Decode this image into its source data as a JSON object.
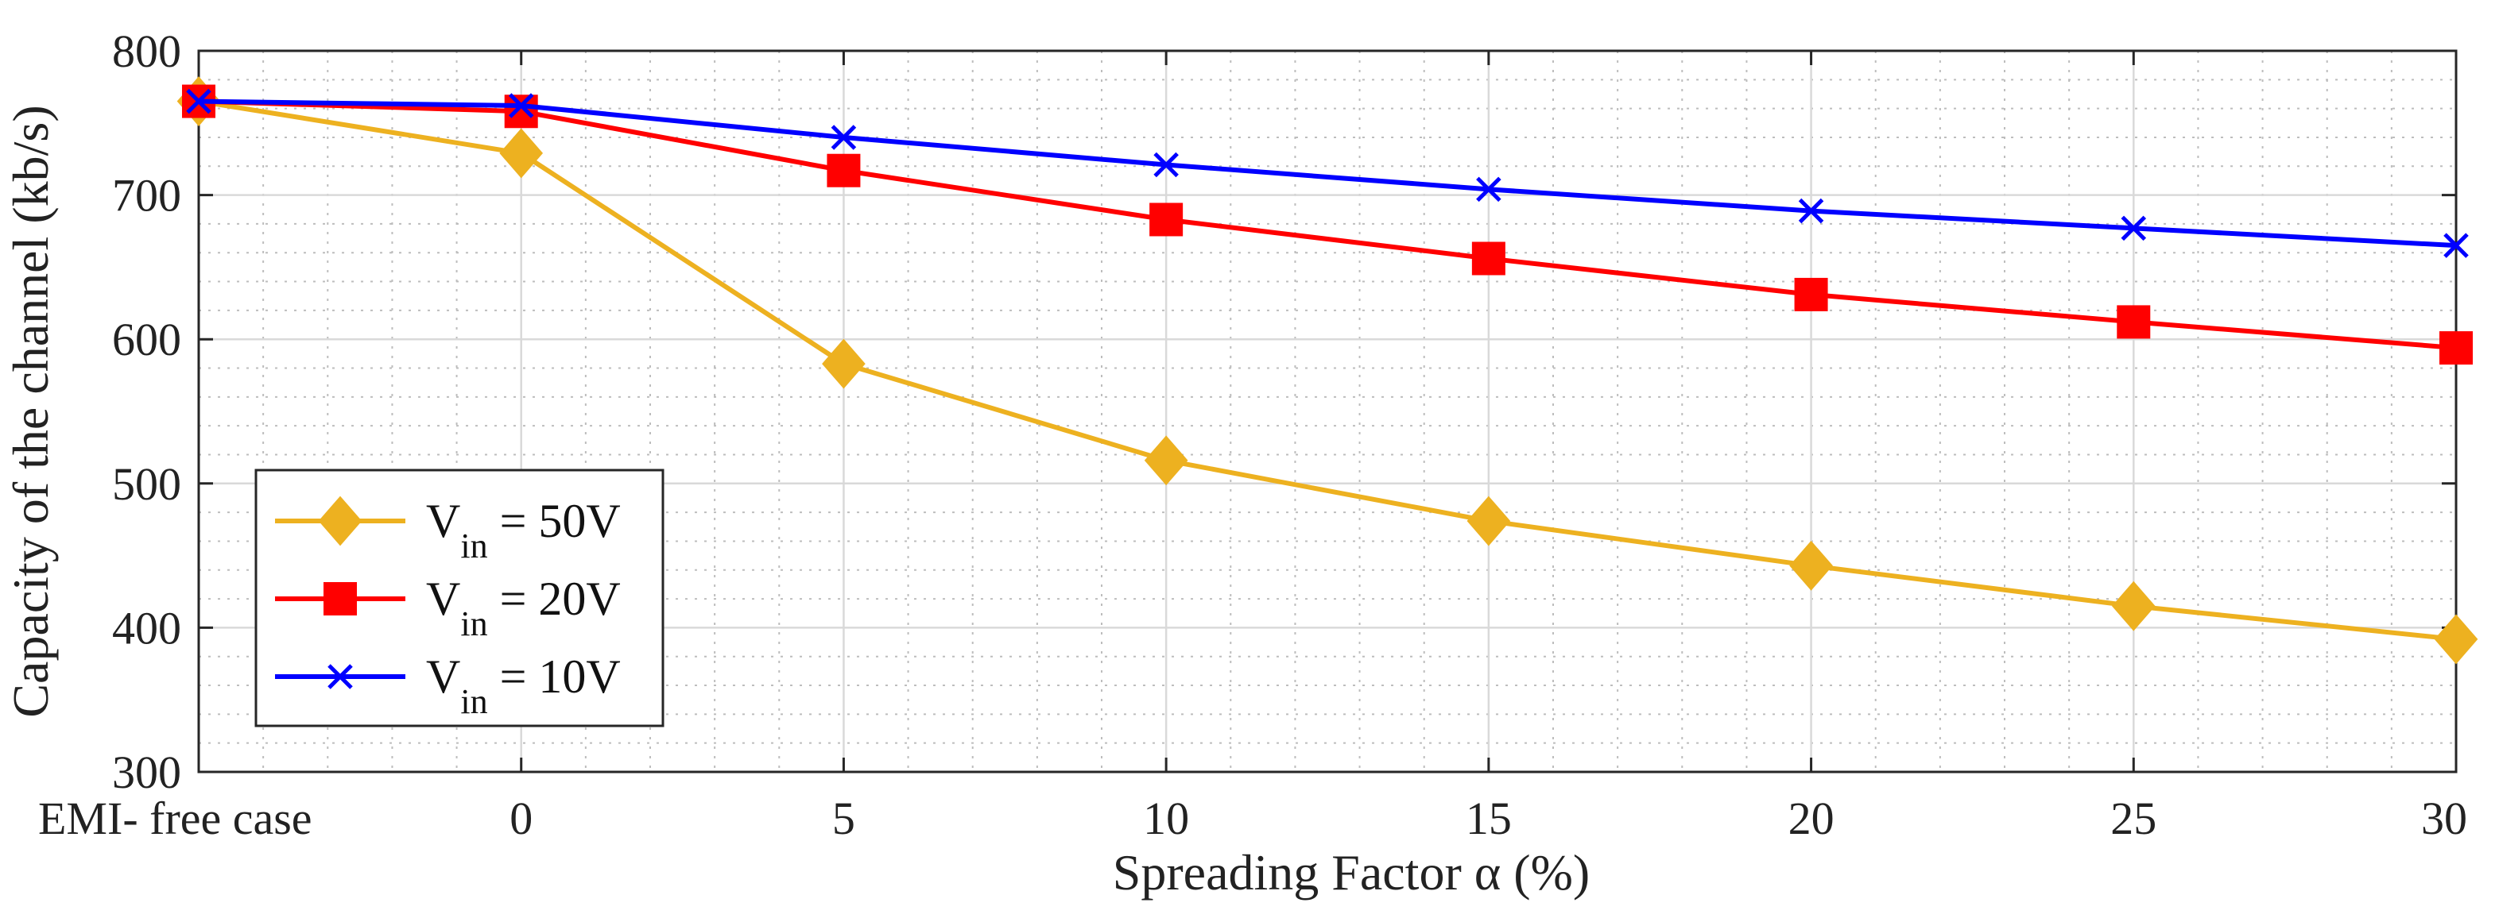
{
  "chart_data": {
    "type": "line",
    "title": "",
    "xlabel": "Spreading Factor α (%)",
    "ylabel": "Capacity of the channel (kb/s)",
    "categories": [
      "EMI- free case",
      "0",
      "5",
      "10",
      "15",
      "20",
      "25",
      "30"
    ],
    "ylim": [
      300,
      800
    ],
    "yticks": [
      300,
      400,
      500,
      600,
      700,
      800
    ],
    "grid": true,
    "minor_grid": true,
    "legend_position": "bottom-left",
    "series": [
      {
        "name": "V_in = 50V",
        "label_main": "V",
        "label_sub": "in",
        "label_rest": " = 50V",
        "color": "#EDB120",
        "marker": "diamond",
        "values": [
          765,
          729,
          583,
          516,
          474,
          443,
          415,
          392
        ]
      },
      {
        "name": "V_in = 20V",
        "label_main": "V",
        "label_sub": "in",
        "label_rest": " = 20V",
        "color": "#FF0000",
        "marker": "square",
        "values": [
          765,
          758,
          717,
          683,
          656,
          631,
          612,
          594
        ]
      },
      {
        "name": "V_in = 10V",
        "label_main": "V",
        "label_sub": "in",
        "label_rest": " = 10V",
        "color": "#0000FF",
        "marker": "x",
        "values": [
          765,
          762,
          740,
          721,
          704,
          689,
          677,
          665
        ]
      }
    ]
  }
}
